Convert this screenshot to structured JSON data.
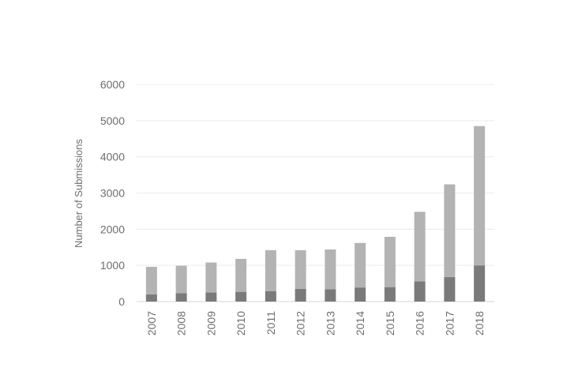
{
  "chart_data": {
    "type": "bar",
    "stacked": true,
    "categories": [
      "2007",
      "2008",
      "2009",
      "2010",
      "2011",
      "2012",
      "2013",
      "2014",
      "2015",
      "2016",
      "2017",
      "2018"
    ],
    "series": [
      {
        "values": [
          200,
          230,
          250,
          270,
          290,
          350,
          340,
          390,
          400,
          560,
          680,
          1000
        ]
      },
      {
        "values": [
          760,
          760,
          830,
          910,
          1130,
          1070,
          1100,
          1230,
          1390,
          1920,
          2560,
          3850
        ]
      }
    ],
    "colors": [
      "#7a7a7a",
      "#b3b3b3"
    ],
    "title": "",
    "xlabel": "",
    "ylabel": "Number of Submissions",
    "ylim": [
      0,
      6000
    ],
    "yticks": [
      0,
      1000,
      2000,
      3000,
      4000,
      5000,
      6000
    ],
    "grid": true,
    "legend": "none"
  }
}
